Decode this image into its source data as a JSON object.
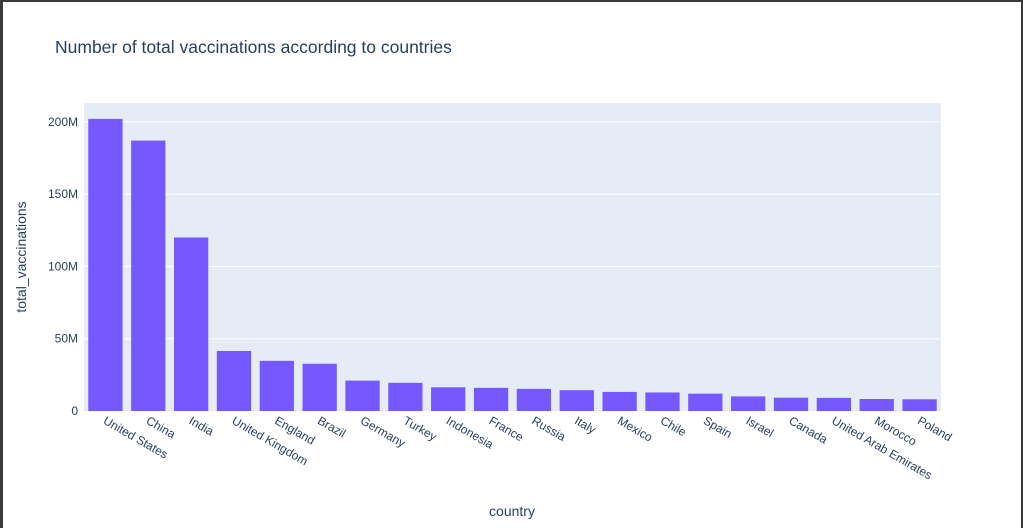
{
  "chart_data": {
    "type": "bar",
    "title": "Number of total vaccinations according to countries",
    "xlabel": "country",
    "ylabel": "total_vaccinations",
    "categories": [
      "United States",
      "China",
      "India",
      "United Kingdom",
      "England",
      "Brazil",
      "Germany",
      "Turkey",
      "Indonesia",
      "France",
      "Russia",
      "Italy",
      "Mexico",
      "Chile",
      "Spain",
      "Israel",
      "Canada",
      "United Arab Emirates",
      "Morocco",
      "Poland"
    ],
    "values": [
      202000000,
      187000000,
      120000000,
      41500000,
      34700000,
      32700000,
      21000000,
      19500000,
      16400000,
      16000000,
      15300000,
      14400000,
      13200000,
      12800000,
      12000000,
      10100000,
      9200000,
      9100000,
      8300000,
      8100000
    ],
    "ylim": [
      0,
      213000000
    ],
    "yticks": [
      0,
      50000000,
      100000000,
      150000000,
      200000000
    ],
    "ytick_labels": [
      "0",
      "50M",
      "100M",
      "150M",
      "200M"
    ],
    "grid": true,
    "colors": {
      "bar": "#7559ff",
      "plot_bg": "#e5ecf6",
      "grid": "#ffffff",
      "text": "#2a3f5f"
    }
  }
}
